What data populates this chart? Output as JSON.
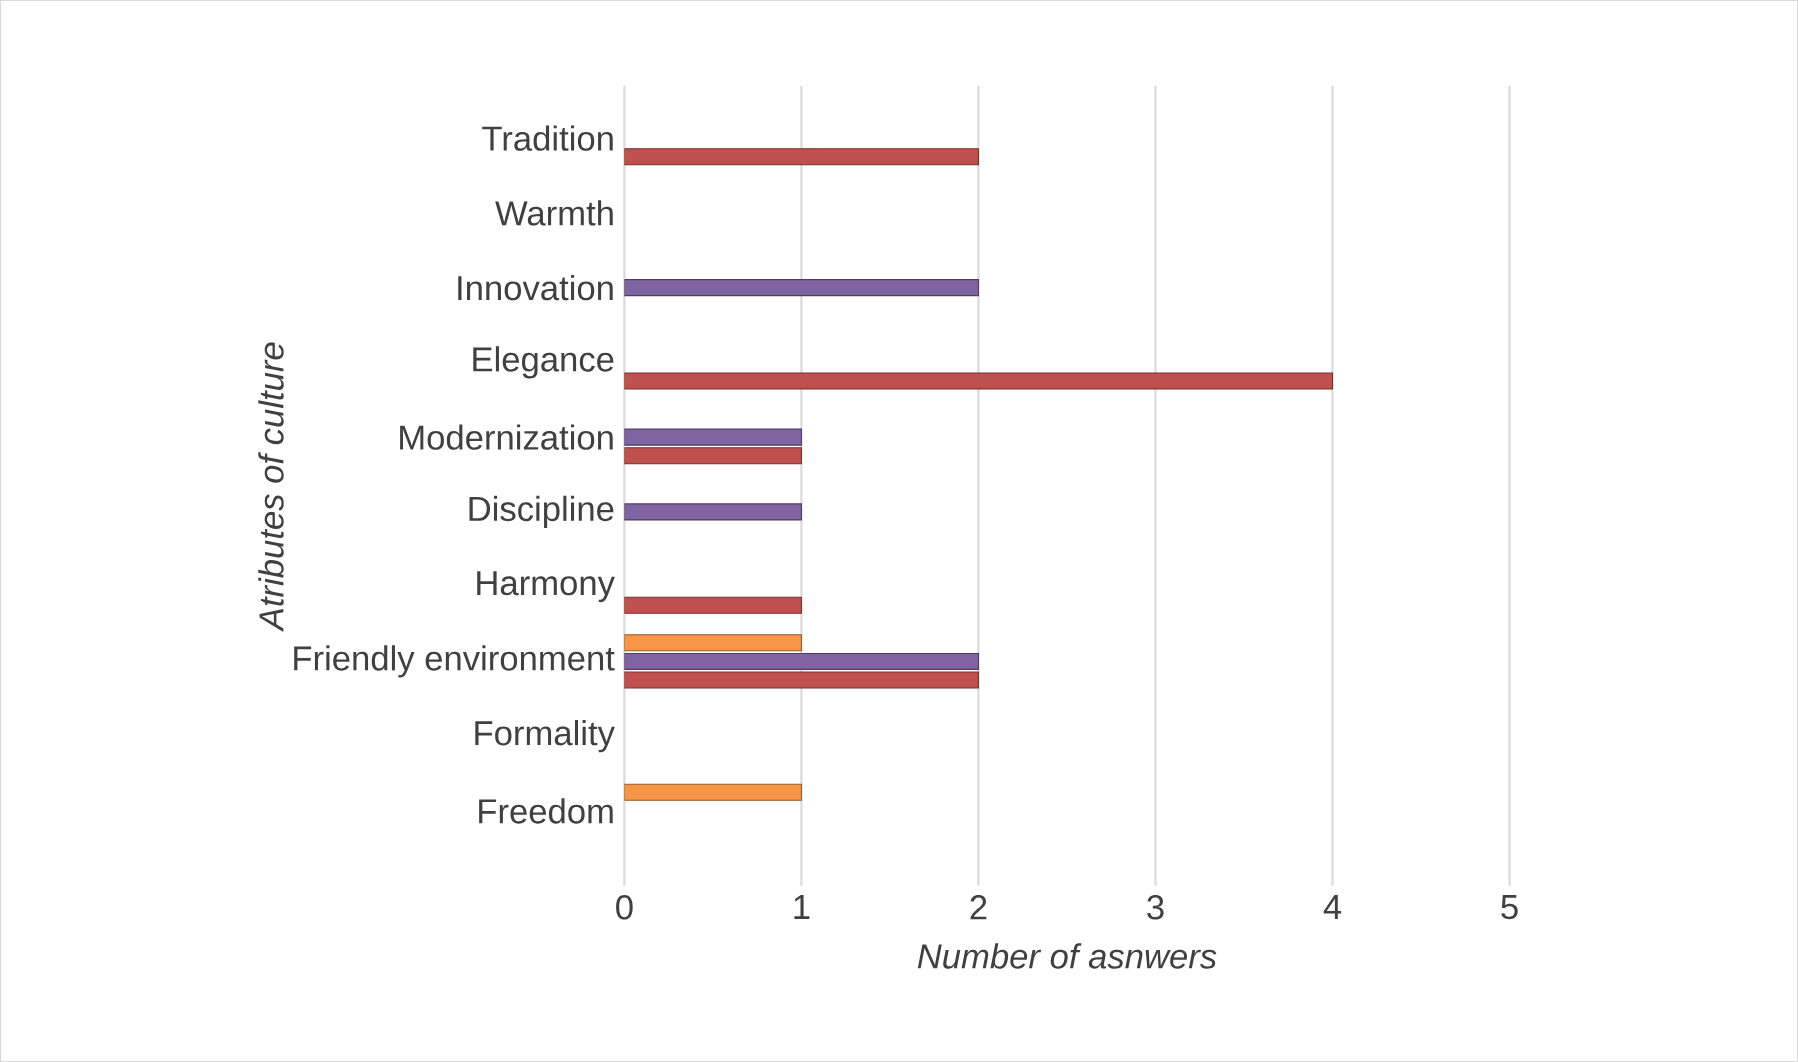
{
  "chart_data": {
    "type": "bar",
    "orientation": "horizontal",
    "xlabel": "Number of asnwers",
    "ylabel": "Atributes of culture",
    "categories": [
      "Tradition",
      "Warmth",
      "Innovation",
      "Elegance",
      "Modernization",
      "Discipline",
      "Harmony",
      "Friendly environment",
      "Formality",
      "Freedom"
    ],
    "series": [
      {
        "color": "#c0504d",
        "values": [
          2,
          null,
          null,
          4,
          1,
          null,
          1,
          2,
          null,
          null
        ]
      },
      {
        "color": "#8064a2",
        "values": [
          null,
          null,
          2,
          null,
          1,
          1,
          null,
          2,
          null,
          null
        ]
      },
      {
        "color": "#f79646",
        "values": [
          null,
          null,
          null,
          null,
          null,
          null,
          null,
          1,
          null,
          1
        ]
      }
    ],
    "xlim": [
      0,
      5
    ],
    "xticks": [
      0,
      1,
      2,
      3,
      4,
      5
    ],
    "grid": "x"
  }
}
